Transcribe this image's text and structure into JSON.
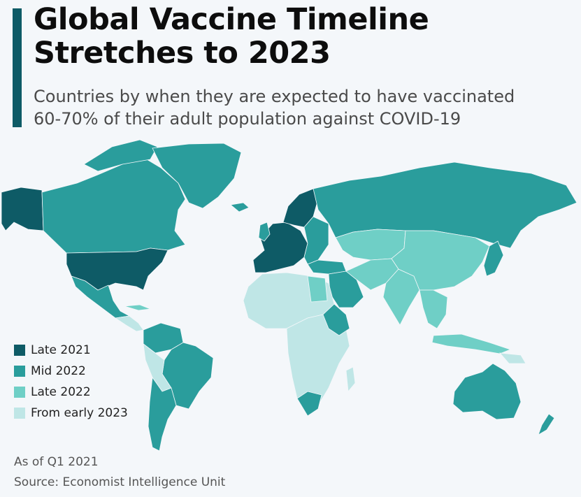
{
  "title_line1": "Global Vaccine Timeline",
  "title_line2": "Stretches to 2023",
  "subtitle_line1": "Countries by when they are expected to have vaccinated",
  "subtitle_line2": "60-70% of their adult population against COVID-19",
  "legend": [
    {
      "label": "Late 2021",
      "color": "#0e5b66"
    },
    {
      "label": "Mid 2022",
      "color": "#2a9d9c"
    },
    {
      "label": "Late 2022",
      "color": "#6fcfc6"
    },
    {
      "label": "From early 2023",
      "color": "#bfe6e6"
    }
  ],
  "note": "As of Q1 2021",
  "source": "Source: Economist Intelligence Unit"
}
